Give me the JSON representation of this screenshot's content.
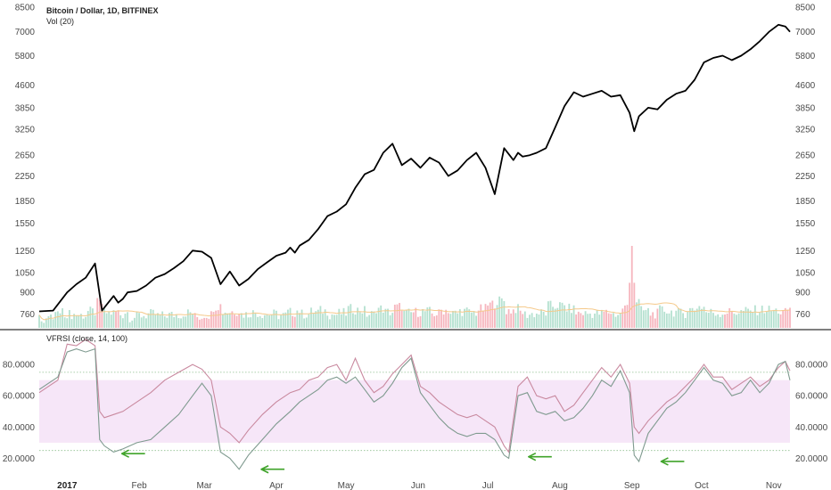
{
  "chart_data": [
    {
      "type": "line",
      "title": "Bitcoin / Dollar, 1D, BITFINEX",
      "volume_label": "Vol (20)",
      "scale": "log",
      "ylim": [
        700,
        8500
      ],
      "y_ticks": [
        760,
        900,
        1050,
        1250,
        1550,
        1850,
        2250,
        2650,
        3250,
        3850,
        4600,
        5800,
        7000,
        8500
      ],
      "y_tick_labels": [
        "760",
        "900",
        "1050",
        "1250",
        "1550",
        "1850",
        "2250",
        "2650",
        "3250",
        "3850",
        "4600",
        "5800",
        "7000",
        "8500"
      ],
      "x_range_days": [
        -12,
        311
      ],
      "series": [
        {
          "x": [
            -12,
            -6,
            0,
            4,
            8,
            12,
            15,
            20,
            22,
            24,
            26,
            30,
            34,
            38,
            42,
            46,
            50,
            54,
            58,
            62,
            66,
            70,
            74,
            78,
            82,
            86,
            90,
            94,
            96,
            98,
            100,
            104,
            108,
            112,
            116,
            120,
            124,
            128,
            132,
            136,
            140,
            144,
            148,
            152,
            156,
            160,
            164,
            168,
            172,
            176,
            180,
            184,
            188,
            192,
            194,
            196,
            199,
            202,
            206,
            210,
            214,
            218,
            222,
            226,
            230,
            234,
            238,
            242,
            244,
            246,
            250,
            254,
            258,
            262,
            266,
            270,
            274,
            278,
            282,
            286,
            290,
            294,
            298,
            302,
            306,
            309,
            311
          ],
          "values": [
            775,
            780,
            900,
            960,
            1010,
            1130,
            780,
            875,
            830,
            855,
            900,
            910,
            950,
            1010,
            1040,
            1090,
            1150,
            1250,
            1240,
            1180,
            960,
            1060,
            950,
            1000,
            1080,
            1140,
            1200,
            1230,
            1280,
            1230,
            1300,
            1360,
            1480,
            1640,
            1700,
            1800,
            2050,
            2280,
            2360,
            2700,
            2900,
            2450,
            2580,
            2400,
            2600,
            2500,
            2250,
            2350,
            2550,
            2700,
            2400,
            1950,
            2800,
            2550,
            2700,
            2620,
            2650,
            2700,
            2800,
            3300,
            3900,
            4350,
            4200,
            4300,
            4400,
            4200,
            4250,
            3700,
            3200,
            3600,
            3850,
            3800,
            4100,
            4300,
            4400,
            4800,
            5500,
            5700,
            5800,
            5600,
            5800,
            6100,
            6500,
            7000,
            7400,
            7300,
            7000
          ]
        }
      ]
    },
    {
      "type": "line",
      "title": "VFRSI (close, 14, 100)",
      "ylim": [
        10,
        100
      ],
      "y_ticks": [
        20,
        40,
        60,
        80
      ],
      "y_tick_labels": [
        "20.0000",
        "40.0000",
        "60.0000",
        "80.0000"
      ],
      "band": [
        30,
        70
      ],
      "levels": [
        75,
        25
      ],
      "x_tick_labels": [
        {
          "day": 0,
          "label": "2017",
          "bold": true
        },
        {
          "day": 31,
          "label": "Feb"
        },
        {
          "day": 59,
          "label": "Mar"
        },
        {
          "day": 90,
          "label": "Apr"
        },
        {
          "day": 120,
          "label": "May"
        },
        {
          "day": 151,
          "label": "Jun"
        },
        {
          "day": 181,
          "label": "Jul"
        },
        {
          "day": 212,
          "label": "Aug"
        },
        {
          "day": 243,
          "label": "Sep"
        },
        {
          "day": 273,
          "label": "Oct"
        },
        {
          "day": 304,
          "label": "Nov"
        }
      ],
      "series": [
        {
          "x": [
            -12,
            -8,
            -4,
            0,
            4,
            8,
            12,
            14,
            16,
            20,
            24,
            30,
            36,
            42,
            48,
            54,
            58,
            62,
            66,
            70,
            74,
            78,
            84,
            90,
            96,
            100,
            104,
            108,
            112,
            116,
            120,
            124,
            128,
            132,
            136,
            140,
            144,
            148,
            152,
            156,
            160,
            164,
            168,
            172,
            176,
            180,
            184,
            188,
            190,
            194,
            198,
            202,
            206,
            210,
            214,
            218,
            222,
            226,
            230,
            234,
            238,
            242,
            244,
            246,
            250,
            254,
            258,
            262,
            266,
            270,
            274,
            278,
            282,
            286,
            290,
            294,
            298,
            302,
            306,
            309,
            311
          ],
          "values": [
            62,
            66,
            70,
            93,
            92,
            96,
            92,
            50,
            46,
            48,
            50,
            56,
            62,
            70,
            75,
            80,
            77,
            70,
            40,
            36,
            30,
            38,
            48,
            56,
            62,
            64,
            70,
            72,
            78,
            80,
            70,
            84,
            70,
            62,
            66,
            74,
            80,
            86,
            66,
            62,
            56,
            52,
            48,
            46,
            48,
            44,
            40,
            28,
            24,
            66,
            72,
            60,
            58,
            60,
            50,
            54,
            62,
            70,
            78,
            72,
            80,
            68,
            40,
            36,
            44,
            50,
            56,
            60,
            66,
            72,
            80,
            72,
            72,
            64,
            68,
            72,
            66,
            70,
            78,
            82,
            76
          ]
        },
        {
          "x": [
            -12,
            -8,
            -4,
            0,
            4,
            8,
            12,
            14,
            16,
            20,
            24,
            30,
            36,
            42,
            48,
            54,
            58,
            62,
            66,
            70,
            74,
            78,
            84,
            90,
            96,
            100,
            104,
            108,
            112,
            116,
            120,
            124,
            128,
            132,
            136,
            140,
            144,
            148,
            152,
            156,
            160,
            164,
            168,
            172,
            176,
            180,
            184,
            188,
            190,
            194,
            198,
            202,
            206,
            210,
            214,
            218,
            222,
            226,
            230,
            234,
            238,
            242,
            244,
            246,
            250,
            254,
            258,
            262,
            266,
            270,
            274,
            278,
            282,
            286,
            290,
            294,
            298,
            302,
            306,
            309,
            311
          ],
          "values": [
            64,
            68,
            72,
            88,
            90,
            88,
            90,
            32,
            28,
            24,
            26,
            30,
            32,
            40,
            48,
            60,
            68,
            60,
            24,
            20,
            13,
            22,
            32,
            42,
            50,
            56,
            60,
            64,
            70,
            72,
            68,
            72,
            64,
            56,
            60,
            68,
            78,
            84,
            62,
            54,
            46,
            40,
            36,
            34,
            36,
            36,
            32,
            22,
            20,
            60,
            62,
            50,
            48,
            50,
            44,
            46,
            52,
            60,
            70,
            66,
            76,
            62,
            22,
            18,
            36,
            44,
            52,
            56,
            62,
            70,
            78,
            70,
            68,
            60,
            62,
            70,
            62,
            68,
            80,
            82,
            70
          ]
        }
      ],
      "annotations": [
        {
          "type": "arrow",
          "day": 22,
          "value": 23
        },
        {
          "type": "arrow",
          "day": 82,
          "value": 13
        },
        {
          "type": "arrow",
          "day": 197,
          "value": 21
        },
        {
          "type": "arrow",
          "day": 254,
          "value": 18
        }
      ]
    }
  ],
  "colors": {
    "price": "#000000",
    "volume_up": "#a8dcc8",
    "volume_down": "#f4a9b3",
    "volume_ma": "#f5c98a",
    "rsi_a": "#c9899f",
    "rsi_b": "#7f9a8f",
    "band_fill": "#f6e6f8",
    "level_line": "#8fbf8f",
    "arrow": "#3fa329",
    "separator": "#333333"
  }
}
